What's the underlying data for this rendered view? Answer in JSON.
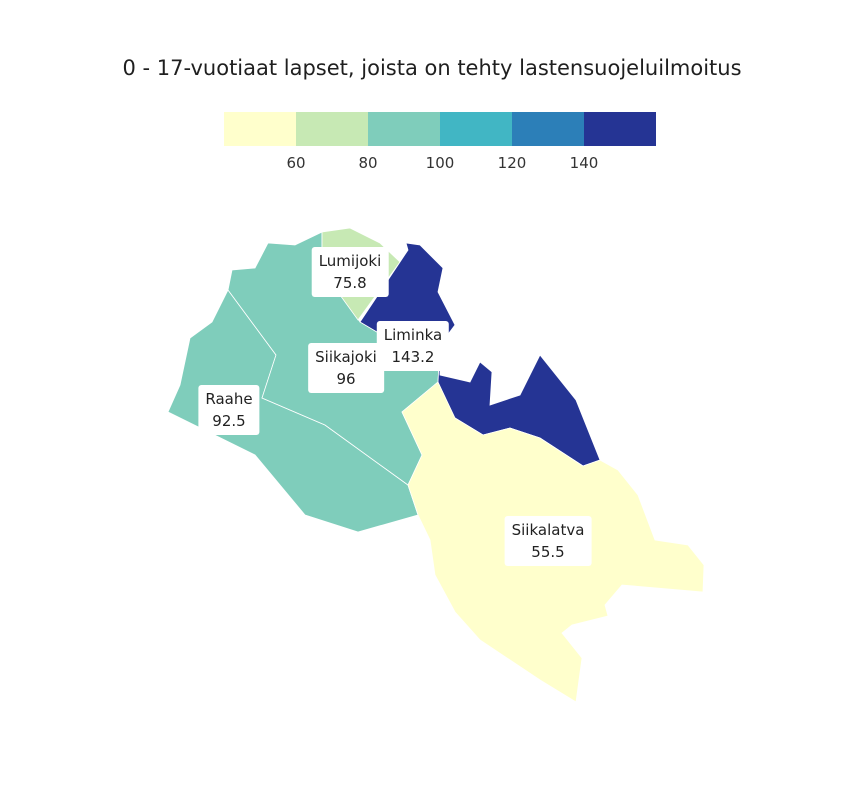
{
  "title": "0 - 17-vuotiaat lapset, joista on tehty lastensuojeluilmoitus",
  "legend": {
    "colors": [
      "#ffffcc",
      "#c7e9b4",
      "#7fcdbb",
      "#41b6c4",
      "#2c7fb8",
      "#253494"
    ],
    "ticks": [
      "60",
      "80",
      "100",
      "120",
      "140"
    ]
  },
  "regions": [
    {
      "name": "Raahe",
      "value": "92.5",
      "color": "#7fcdbb"
    },
    {
      "name": "Siikajoki",
      "value": "96",
      "color": "#7fcdbb"
    },
    {
      "name": "Lumijoki",
      "value": "75.8",
      "color": "#c7e9b4"
    },
    {
      "name": "Liminka",
      "value": "143.2",
      "color": "#253494"
    },
    {
      "name": "Siikalatva",
      "value": "55.5",
      "color": "#ffffcc"
    }
  ]
}
